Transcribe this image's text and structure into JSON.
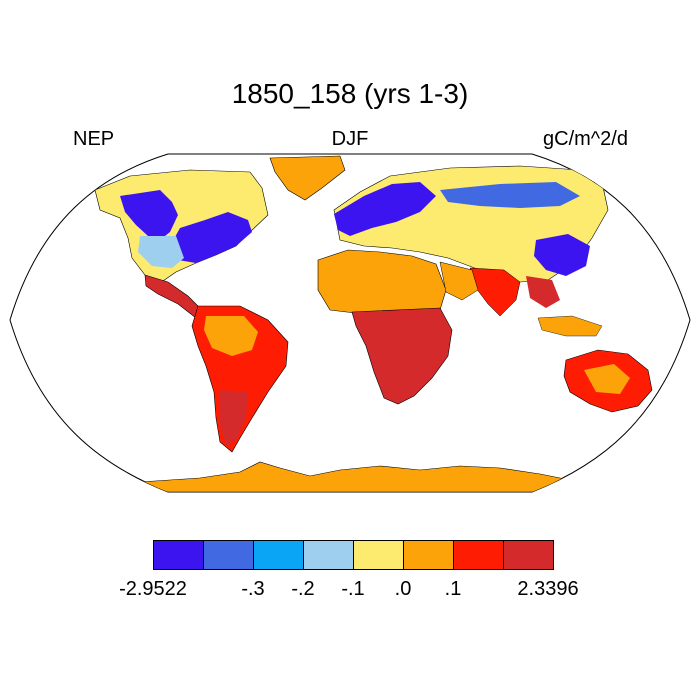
{
  "map": {
    "title": "1850_158 (yrs 1-3)",
    "left_label": "NEP",
    "center_label": "DJF",
    "right_label": "gC/m^2/d"
  },
  "colorbar": {
    "colors": [
      "#3c14f0",
      "#4169e1",
      "#0aa5f5",
      "#9ecfef",
      "#fdeb70",
      "#fda30a",
      "#fe1d03",
      "#d42a2c"
    ],
    "labels": [
      "-2.9522",
      "-.3",
      "-.2",
      "-.1",
      ".0",
      ".1",
      "2.3396"
    ]
  }
}
